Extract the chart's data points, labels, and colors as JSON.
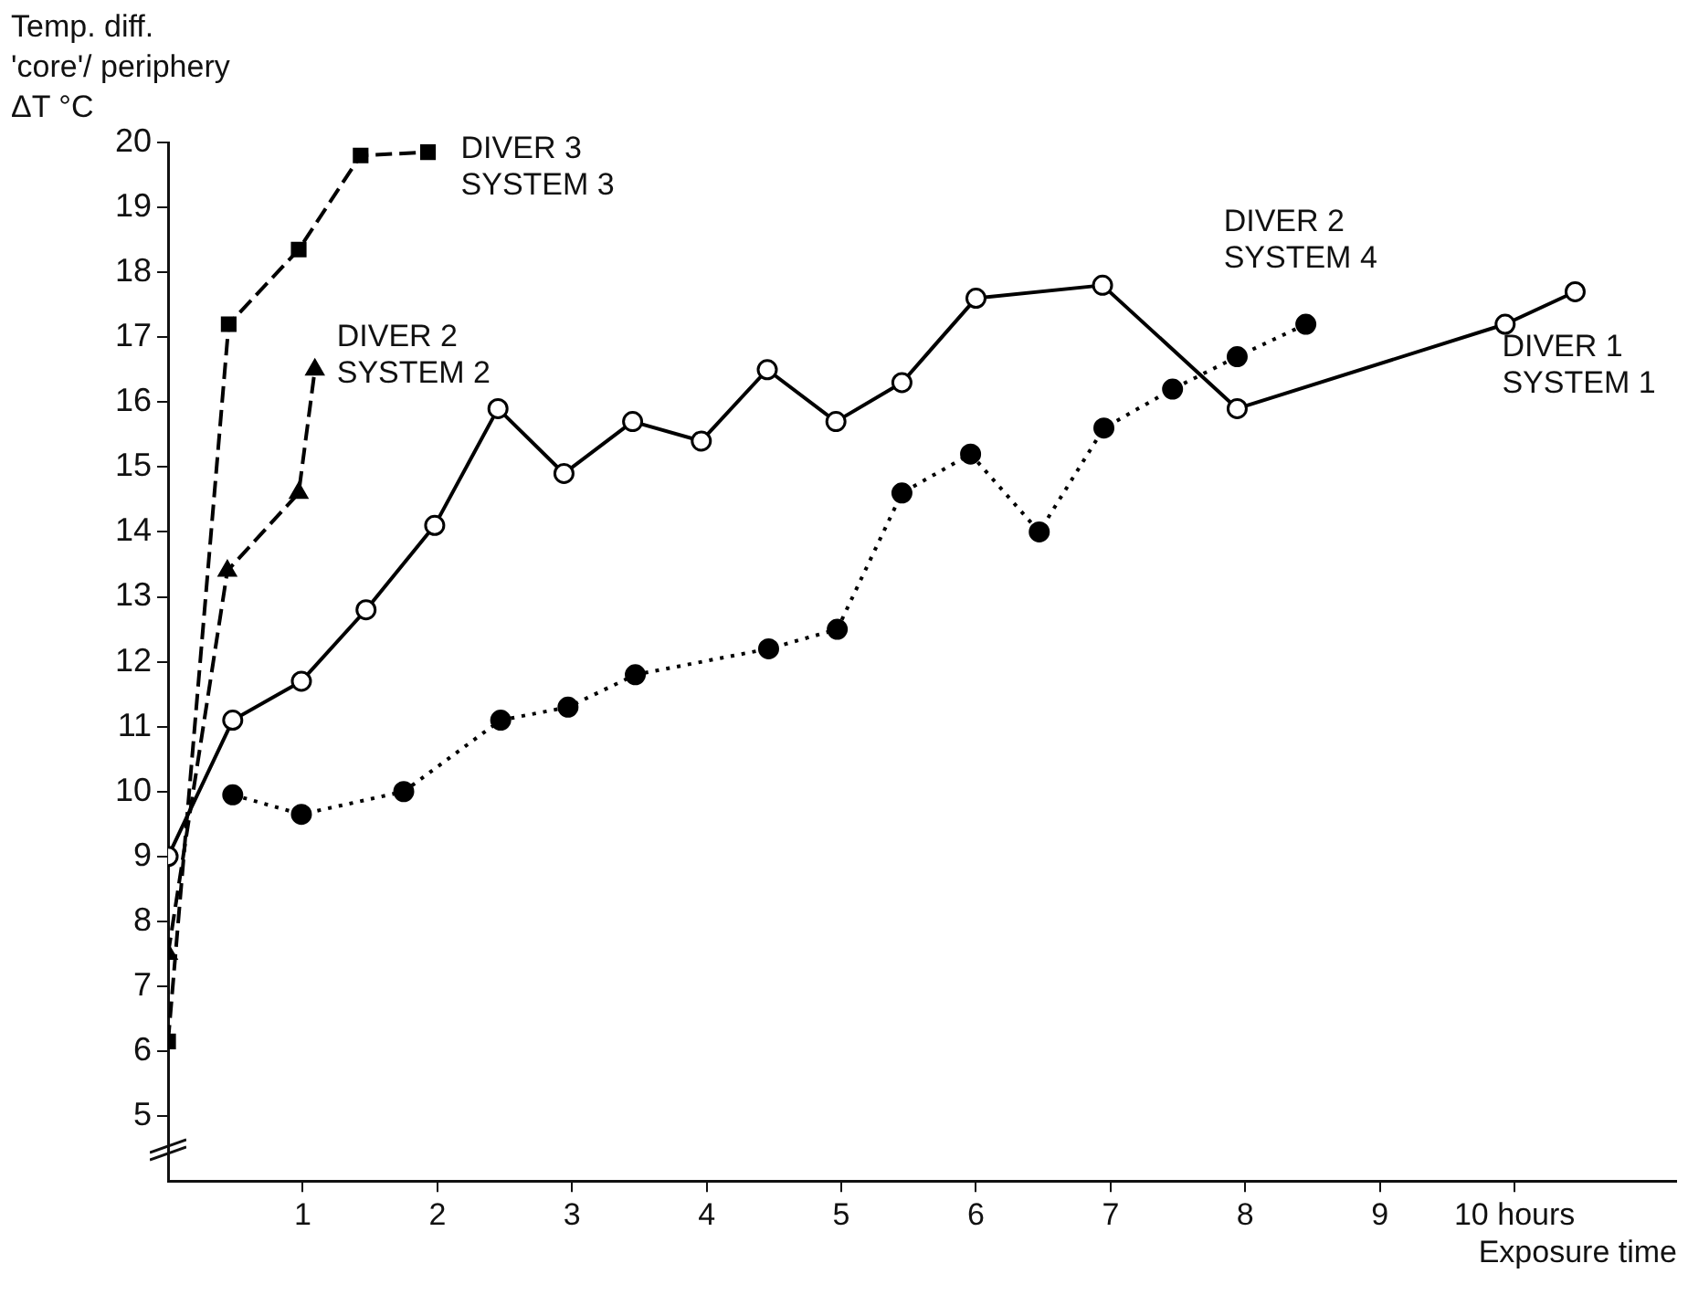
{
  "chart_data": {
    "type": "line",
    "ylabel": "Temp. diff. 'core'/ periphery ΔT °C",
    "xlabel": "Exposure time",
    "xlim": [
      0,
      11.2
    ],
    "xticks": [
      1,
      2,
      3,
      4,
      5,
      6,
      7,
      8,
      9,
      {
        "value": 10,
        "label": "10 hours"
      }
    ],
    "ylim": [
      4,
      20
    ],
    "yticks": [
      5,
      6,
      7,
      8,
      9,
      10,
      11,
      12,
      13,
      14,
      15,
      16,
      17,
      18,
      19,
      20
    ],
    "grid": false,
    "legend": false,
    "series": [
      {
        "name": "DIVER 1 SYSTEM 1",
        "color": "#000000",
        "marker": "circle",
        "line_style": "solid",
        "x": [
          0,
          0.48,
          0.99,
          1.47,
          1.98,
          2.45,
          2.94,
          3.45,
          3.96,
          4.45,
          4.96,
          5.45,
          6.0,
          6.94,
          7.94,
          9.93,
          10.45
        ],
        "values": [
          9.0,
          11.1,
          11.7,
          12.8,
          14.1,
          15.9,
          14.9,
          15.7,
          15.4,
          16.5,
          15.7,
          16.3,
          17.6,
          17.8,
          15.9,
          17.2,
          17.7
        ]
      },
      {
        "name": "DIVER 2 SYSTEM 4",
        "color": "#000000",
        "marker": "circle",
        "line_style": "dotted",
        "x": [
          0.48,
          0.99,
          1.75,
          2.47,
          2.97,
          3.47,
          4.46,
          4.97,
          5.45,
          5.96,
          6.47,
          6.95,
          7.46,
          7.94,
          8.45
        ],
        "values": [
          9.95,
          9.65,
          10.0,
          11.1,
          11.3,
          11.8,
          12.2,
          12.5,
          14.6,
          15.2,
          14.0,
          15.6,
          16.2,
          16.7,
          17.2
        ]
      },
      {
        "name": "DIVER 3 SYSTEM 3",
        "color": "#000000",
        "marker": "square",
        "line_style": "dashed",
        "x": [
          0,
          0.45,
          0.97,
          1.43,
          1.93
        ],
        "values": [
          6.15,
          17.2,
          18.35,
          19.8,
          19.85
        ]
      },
      {
        "name": "DIVER 2 SYSTEM 2",
        "color": "#000000",
        "marker": "triangle",
        "line_style": "dashed",
        "x": [
          0,
          0.44,
          0.97,
          1.09
        ],
        "values": [
          7.5,
          13.4,
          14.6,
          16.5
        ]
      }
    ]
  }
}
